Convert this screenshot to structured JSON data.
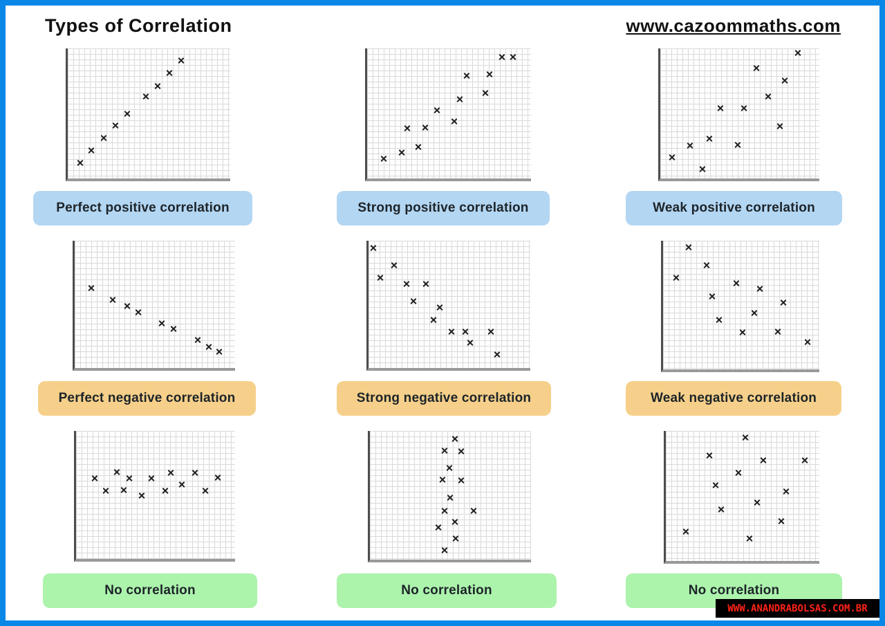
{
  "header": {
    "title": "Types of Correlation",
    "website": "www.cazoommaths.com"
  },
  "footer": {
    "watermark": "WWW.ANANDRABOLSAS.COM.BR"
  },
  "colors": {
    "page_border": "#0b87e8",
    "badge_positive": "#b3d6f2",
    "badge_negative": "#f6d08a",
    "badge_none": "#acf3ac",
    "marker": "#1f1f1f",
    "grid_line": "#d9d9d9",
    "watermark_bg": "#000000",
    "watermark_text": "#ff2317"
  },
  "chart_data": [
    {
      "type": "scatter",
      "label": "Perfect positive correlation",
      "category": "positive",
      "marker": "x",
      "grid": true,
      "axes_labeled": false,
      "x_range": [
        0,
        100
      ],
      "y_range": [
        0,
        100
      ],
      "points": [
        [
          7.6,
          12.1
        ],
        [
          14.3,
          21.6
        ],
        [
          22.3,
          31.1
        ],
        [
          29.4,
          40.5
        ],
        [
          36.6,
          50.0
        ],
        [
          47.9,
          63.2
        ],
        [
          55.5,
          71.1
        ],
        [
          62.6,
          81.1
        ],
        [
          69.7,
          90.5
        ]
      ]
    },
    {
      "type": "scatter",
      "label": "Strong positive correlation",
      "category": "positive",
      "marker": "x",
      "grid": true,
      "axes_labeled": false,
      "x_range": [
        0,
        100
      ],
      "y_range": [
        0,
        100
      ],
      "points": [
        [
          10.0,
          15.3
        ],
        [
          21.3,
          20.0
        ],
        [
          31.3,
          24.2
        ],
        [
          24.6,
          38.4
        ],
        [
          35.4,
          38.9
        ],
        [
          42.5,
          52.6
        ],
        [
          53.3,
          43.7
        ],
        [
          56.7,
          61.1
        ],
        [
          60.8,
          78.9
        ],
        [
          72.1,
          65.8
        ],
        [
          74.6,
          80.0
        ],
        [
          82.1,
          93.2
        ],
        [
          89.2,
          93.2
        ]
      ]
    },
    {
      "type": "scatter",
      "label": "Weak positive correlation",
      "category": "positive",
      "marker": "x",
      "grid": true,
      "axes_labeled": false,
      "x_range": [
        0,
        100
      ],
      "y_range": [
        0,
        100
      ],
      "points": [
        [
          7.4,
          16.3
        ],
        [
          18.6,
          25.3
        ],
        [
          26.4,
          7.4
        ],
        [
          30.7,
          30.5
        ],
        [
          37.7,
          54.2
        ],
        [
          48.5,
          25.8
        ],
        [
          52.4,
          54.2
        ],
        [
          60.6,
          84.7
        ],
        [
          68.0,
          63.2
        ],
        [
          75.3,
          40.0
        ],
        [
          78.4,
          75.3
        ],
        [
          86.6,
          96.5
        ]
      ]
    },
    {
      "type": "scatter",
      "label": "Perfect negative correlation",
      "category": "negative",
      "marker": "x",
      "grid": true,
      "axes_labeled": false,
      "x_range": [
        0,
        100
      ],
      "y_range": [
        0,
        100
      ],
      "points": [
        [
          10.2,
          62.8
        ],
        [
          23.8,
          53.7
        ],
        [
          32.8,
          48.9
        ],
        [
          39.6,
          43.6
        ],
        [
          54.5,
          35.1
        ],
        [
          61.7,
          30.9
        ],
        [
          76.6,
          21.8
        ],
        [
          83.8,
          16.5
        ],
        [
          90.2,
          12.8
        ]
      ]
    },
    {
      "type": "scatter",
      "label": "Strong negative correlation",
      "category": "negative",
      "marker": "x",
      "grid": true,
      "axes_labeled": false,
      "x_range": [
        0,
        100
      ],
      "y_range": [
        0,
        100
      ],
      "points": [
        [
          3.2,
          94.1
        ],
        [
          15.7,
          80.7
        ],
        [
          7.4,
          71.1
        ],
        [
          23.5,
          66.3
        ],
        [
          35.5,
          66.3
        ],
        [
          27.6,
          52.4
        ],
        [
          44.2,
          47.6
        ],
        [
          40.1,
          38.0
        ],
        [
          51.2,
          28.3
        ],
        [
          59.9,
          28.3
        ],
        [
          62.7,
          19.8
        ],
        [
          75.6,
          28.3
        ],
        [
          79.7,
          10.7
        ]
      ]
    },
    {
      "type": "scatter",
      "label": "Weak negative correlation",
      "category": "negative",
      "marker": "x",
      "grid": true,
      "axes_labeled": false,
      "x_range": [
        0,
        100
      ],
      "y_range": [
        0,
        100
      ],
      "points": [
        [
          16.3,
          94.7
        ],
        [
          27.8,
          80.9
        ],
        [
          8.4,
          71.3
        ],
        [
          46.7,
          67.0
        ],
        [
          62.1,
          62.8
        ],
        [
          31.3,
          56.9
        ],
        [
          77.1,
          52.1
        ],
        [
          58.6,
          43.6
        ],
        [
          35.7,
          38.3
        ],
        [
          51.1,
          28.7
        ],
        [
          73.6,
          29.3
        ],
        [
          92.5,
          21.3
        ]
      ]
    },
    {
      "type": "scatter",
      "label": "No correlation",
      "category": "none",
      "marker": "x",
      "grid": true,
      "axes_labeled": false,
      "x_range": [
        0,
        100
      ],
      "y_range": [
        0,
        100
      ],
      "points": [
        [
          11.6,
          63.1
        ],
        [
          18.9,
          53.5
        ],
        [
          25.8,
          67.9
        ],
        [
          30.0,
          54.0
        ],
        [
          33.5,
          63.1
        ],
        [
          41.2,
          49.2
        ],
        [
          47.6,
          63.1
        ],
        [
          56.2,
          53.5
        ],
        [
          59.7,
          67.4
        ],
        [
          66.5,
          58.3
        ],
        [
          74.7,
          67.4
        ],
        [
          81.5,
          53.5
        ],
        [
          89.3,
          63.6
        ]
      ]
    },
    {
      "type": "scatter",
      "label": "No correlation",
      "category": "none",
      "marker": "x",
      "grid": true,
      "axes_labeled": false,
      "x_range": [
        0,
        100
      ],
      "y_range": [
        0,
        100
      ],
      "points": [
        [
          53.0,
          93.7
        ],
        [
          46.2,
          84.7
        ],
        [
          56.8,
          84.1
        ],
        [
          49.2,
          71.4
        ],
        [
          44.9,
          61.9
        ],
        [
          56.8,
          61.4
        ],
        [
          49.6,
          48.1
        ],
        [
          46.2,
          38.1
        ],
        [
          64.4,
          38.1
        ],
        [
          53.0,
          29.1
        ],
        [
          42.4,
          24.9
        ],
        [
          53.4,
          16.4
        ],
        [
          46.2,
          7.4
        ]
      ]
    },
    {
      "type": "scatter",
      "label": "No correlation",
      "category": "none",
      "marker": "x",
      "grid": true,
      "axes_labeled": false,
      "x_range": [
        0,
        100
      ],
      "y_range": [
        0,
        100
      ],
      "points": [
        [
          52.0,
          94.7
        ],
        [
          28.3,
          81.1
        ],
        [
          63.7,
          77.4
        ],
        [
          90.6,
          77.4
        ],
        [
          47.5,
          67.9
        ],
        [
          32.3,
          58.4
        ],
        [
          78.5,
          53.7
        ],
        [
          59.6,
          44.7
        ],
        [
          35.9,
          39.5
        ],
        [
          75.3,
          30.5
        ],
        [
          13.0,
          22.6
        ],
        [
          54.7,
          17.4
        ]
      ]
    }
  ]
}
